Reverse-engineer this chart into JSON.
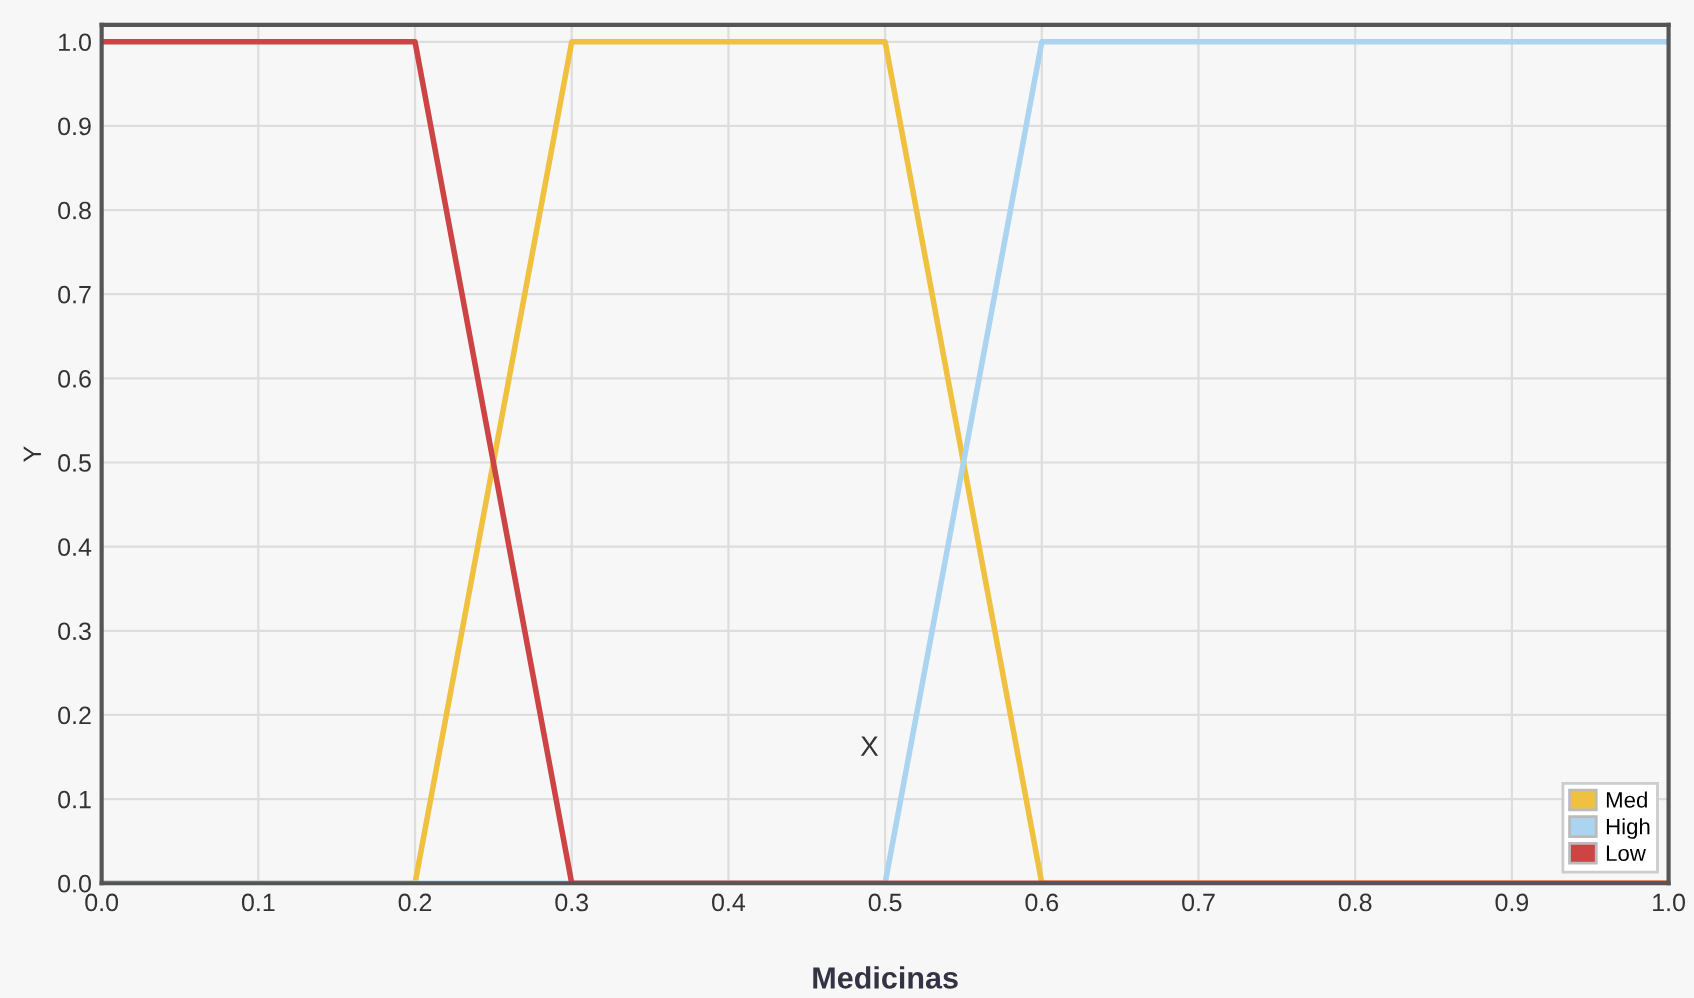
{
  "chart_data": {
    "type": "line",
    "xlabel": "Medicinas",
    "ylabel": "Y",
    "series": [
      {
        "name": "Med",
        "color": "#f0c040",
        "x": [
          0,
          0.2,
          0.3,
          0.5,
          0.6,
          1.0
        ],
        "values": [
          0,
          0,
          1,
          1,
          0,
          0
        ]
      },
      {
        "name": "High",
        "color": "#aad4f0",
        "x": [
          0,
          0.5,
          0.6,
          1.0
        ],
        "values": [
          0,
          0,
          1,
          1
        ]
      },
      {
        "name": "Low",
        "color": "#cc4444",
        "x": [
          0,
          0.2,
          0.3,
          1.0
        ],
        "values": [
          1,
          1,
          0,
          0
        ]
      }
    ],
    "annotations": [
      "X"
    ],
    "xlim": [
      0,
      1.0
    ],
    "ylim": [
      0,
      1.02
    ],
    "xticks": [
      {
        "value": 0,
        "label": "0.0"
      },
      0.1,
      0.2,
      0.3,
      0.4,
      0.5,
      0.6,
      0.7,
      0.8,
      0.9,
      {
        "value": 1.0,
        "label": "1.0"
      }
    ],
    "yticks": [
      {
        "value": 0,
        "label": "0.0"
      },
      0.1,
      0.2,
      0.3,
      0.4,
      0.5,
      0.6,
      0.7,
      0.8,
      0.9,
      {
        "value": 1.0,
        "label": "1.0"
      }
    ],
    "grid": true,
    "legend": "bottom right",
    "marker": "none",
    "line_style": "solid"
  }
}
